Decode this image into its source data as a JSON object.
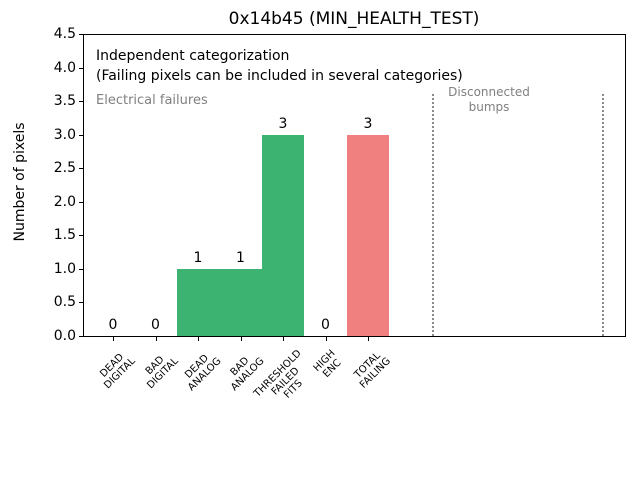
{
  "chart_data": {
    "type": "bar",
    "title": "0x14b45 (MIN_HEALTH_TEST)",
    "ylabel": "Number of pixels",
    "xlabel": "",
    "ylim": [
      0.0,
      4.5
    ],
    "yticks": [
      "0.0",
      "0.5",
      "1.0",
      "1.5",
      "2.0",
      "2.5",
      "3.0",
      "3.5",
      "4.0",
      "4.5"
    ],
    "grid": false,
    "legend": null,
    "categories": [
      [
        "DEAD",
        "DIGITAL"
      ],
      [
        "BAD",
        "DIGITAL"
      ],
      [
        "DEAD",
        "ANALOG"
      ],
      [
        "BAD",
        "ANALOG"
      ],
      [
        "THRESHOLD",
        "FAILED",
        "FITS"
      ],
      [
        "HIGH",
        "ENC"
      ],
      [
        "TOTAL",
        "FAILING"
      ]
    ],
    "values": [
      0,
      0,
      1,
      1,
      3,
      0,
      3
    ],
    "bar_labels": [
      "0",
      "0",
      "1",
      "1",
      "3",
      "0",
      "3"
    ],
    "bar_colors": [
      "#3cb371",
      "#3cb371",
      "#3cb371",
      "#3cb371",
      "#3cb371",
      "#3cb371",
      "#f08080"
    ],
    "annotations": [
      {
        "text": "Independent categorization",
        "color": "#000000"
      },
      {
        "text": "(Failing pixels can be included in several categories)",
        "color": "#000000"
      },
      {
        "text": "Electrical failures",
        "color": "#808080"
      },
      {
        "text": "Disconnected\nbumps",
        "color": "#808080"
      }
    ],
    "reference_lines": {
      "style": "dotted",
      "color": "#8a8a8a",
      "x_positions": [
        7.5,
        11.5
      ],
      "y_extent": [
        0,
        3.6
      ]
    }
  },
  "colors": {
    "bar_green": "#3cb371",
    "bar_red": "#f08080",
    "muted_text": "#808080",
    "axis": "#000000",
    "background": "#ffffff"
  }
}
